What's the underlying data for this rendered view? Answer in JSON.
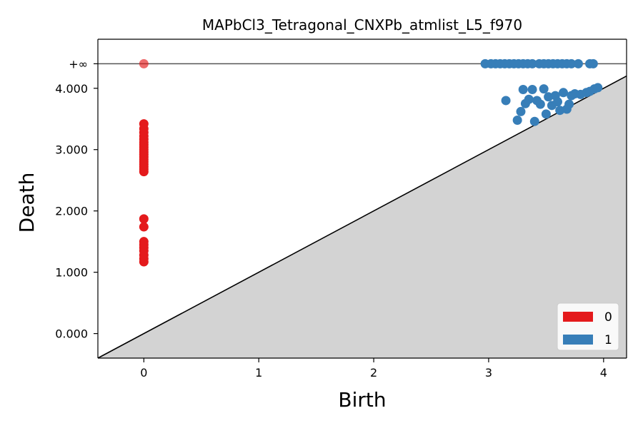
{
  "chart_data": {
    "type": "scatter",
    "title": "MAPbCl3_Tetragonal_CNXPb_atmlist_L5_f970",
    "xlabel": "Birth",
    "ylabel": "Death",
    "xlim": [
      -0.4,
      4.2
    ],
    "ylim": [
      -0.4,
      4.8
    ],
    "x_ticks": [
      0,
      1,
      2,
      3,
      4
    ],
    "x_tick_labels": [
      "0",
      "1",
      "2",
      "3",
      "4"
    ],
    "y_ticks": [
      0,
      1,
      2,
      3,
      4
    ],
    "y_tick_labels": [
      "0.000",
      "1.000",
      "2.000",
      "3.000",
      "4.000"
    ],
    "infinity_value": 4.4,
    "infinity_label": "+∞",
    "diagonal": true,
    "grid": false,
    "legend_position": "bottom-right",
    "series": [
      {
        "name": "0",
        "color": "#e41a1c",
        "points": [
          [
            0,
            1.17
          ],
          [
            0,
            1.22
          ],
          [
            0,
            1.28
          ],
          [
            0,
            1.35
          ],
          [
            0,
            1.4
          ],
          [
            0,
            1.45
          ],
          [
            0,
            1.5
          ],
          [
            0,
            1.74
          ],
          [
            0,
            1.87
          ],
          [
            0,
            2.64
          ],
          [
            0,
            2.68
          ],
          [
            0,
            2.72
          ],
          [
            0,
            2.76
          ],
          [
            0,
            2.8
          ],
          [
            0,
            2.84
          ],
          [
            0,
            2.88
          ],
          [
            0,
            2.92
          ],
          [
            0,
            2.96
          ],
          [
            0,
            3.0
          ],
          [
            0,
            3.04
          ],
          [
            0,
            3.08
          ],
          [
            0,
            3.12
          ],
          [
            0,
            3.17
          ],
          [
            0,
            3.22
          ],
          [
            0,
            3.28
          ],
          [
            0,
            3.34
          ],
          [
            0,
            3.42
          ]
        ],
        "infinite_births": [
          0
        ]
      },
      {
        "name": "1",
        "color": "#377eb8",
        "points": [
          [
            3.15,
            3.8
          ],
          [
            3.25,
            3.48
          ],
          [
            3.28,
            3.62
          ],
          [
            3.3,
            3.98
          ],
          [
            3.32,
            3.75
          ],
          [
            3.35,
            3.82
          ],
          [
            3.38,
            3.98
          ],
          [
            3.4,
            3.46
          ],
          [
            3.42,
            3.8
          ],
          [
            3.45,
            3.74
          ],
          [
            3.48,
            3.99
          ],
          [
            3.5,
            3.58
          ],
          [
            3.52,
            3.86
          ],
          [
            3.55,
            3.72
          ],
          [
            3.58,
            3.88
          ],
          [
            3.6,
            3.78
          ],
          [
            3.62,
            3.64
          ],
          [
            3.65,
            3.93
          ],
          [
            3.68,
            3.66
          ],
          [
            3.7,
            3.74
          ],
          [
            3.72,
            3.88
          ],
          [
            3.75,
            3.91
          ],
          [
            3.8,
            3.9
          ],
          [
            3.85,
            3.93
          ],
          [
            3.88,
            3.95
          ],
          [
            3.92,
            3.99
          ],
          [
            3.95,
            4.01
          ]
        ],
        "infinite_births": [
          2.97,
          3.02,
          3.06,
          3.1,
          3.14,
          3.18,
          3.22,
          3.26,
          3.3,
          3.34,
          3.38,
          3.44,
          3.48,
          3.52,
          3.56,
          3.6,
          3.64,
          3.68,
          3.72,
          3.78,
          3.88,
          3.91
        ]
      }
    ]
  }
}
